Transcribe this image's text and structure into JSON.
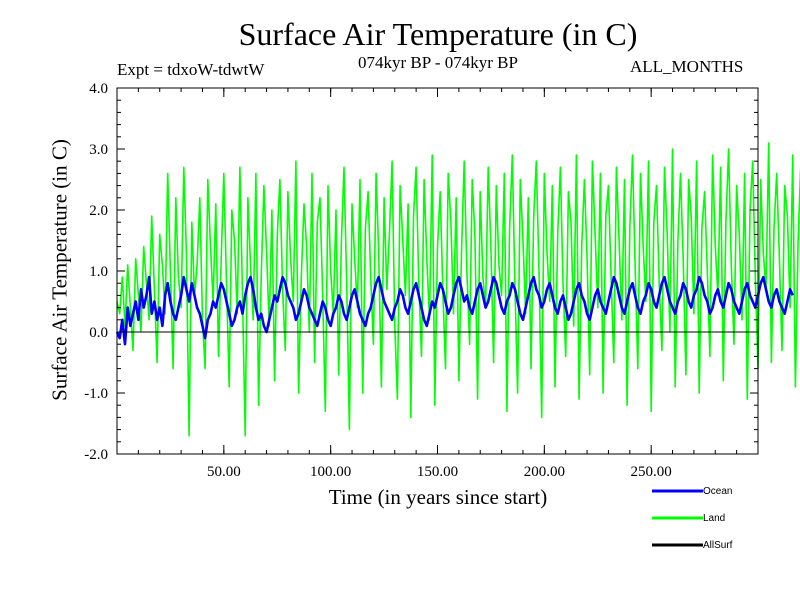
{
  "chart_data": {
    "type": "line",
    "title": "Surface Air Temperature (in C)",
    "subtitle": "074kyr BP - 074kyr BP",
    "experiment": "Expt = tdxoW-tdwtW",
    "months": "ALL_MONTHS",
    "xlabel": "Time (in years since start)",
    "ylabel": "Surface Air Temperature (in C)",
    "xlim": [
      0,
      300
    ],
    "ylim": [
      -2.0,
      4.0
    ],
    "x_ticks": [
      50,
      100,
      150,
      200,
      250
    ],
    "x_tick_labels": [
      "50.00",
      "100.00",
      "150.00",
      "200.00",
      "250.00"
    ],
    "y_ticks": [
      -2.0,
      -1.0,
      0.0,
      1.0,
      2.0,
      3.0,
      4.0
    ],
    "y_tick_labels": [
      "-2.0",
      "-1.0",
      "0.0",
      "1.0",
      "2.0",
      "3.0",
      "4.0"
    ],
    "zero_line": true,
    "series": [
      {
        "name": "Land",
        "color": "#00ff00",
        "x_start": 0,
        "x_step": 1.25,
        "values": [
          0.5,
          0.3,
          0.9,
          0.1,
          1.1,
          0.4,
          -0.3,
          1.2,
          0.6,
          0.0,
          1.4,
          0.8,
          0.2,
          1.9,
          0.7,
          -0.5,
          1.6,
          1.1,
          0.3,
          2.6,
          1.0,
          -0.6,
          2.2,
          0.9,
          0.4,
          2.7,
          1.3,
          -1.7,
          1.8,
          0.6,
          1.1,
          2.2,
          0.2,
          -0.6,
          2.5,
          1.4,
          0.5,
          2.1,
          -0.4,
          1.2,
          2.6,
          0.8,
          -0.9,
          2.0,
          1.5,
          0.3,
          2.7,
          0.6,
          -1.7,
          2.2,
          1.1,
          0.2,
          2.6,
          -1.2,
          0.9,
          2.4,
          1.3,
          0.1,
          2.0,
          -0.8,
          1.6,
          2.5,
          0.7,
          -0.3,
          2.3,
          1.2,
          0.5,
          2.8,
          -1.0,
          0.9,
          2.1,
          1.4,
          0.0,
          2.6,
          -0.5,
          1.8,
          2.2,
          0.6,
          -1.3,
          2.4,
          1.0,
          0.3,
          2.0,
          -0.7,
          1.5,
          2.7,
          0.8,
          -1.6,
          2.1,
          1.2,
          0.4,
          2.5,
          -1.0,
          1.7,
          2.3,
          0.9,
          -0.2,
          2.6,
          1.3,
          -0.9,
          2.2,
          0.7,
          1.6,
          2.8,
          0.1,
          -1.1,
          2.4,
          1.5,
          0.6,
          2.1,
          -1.4,
          1.9,
          2.7,
          0.8,
          -0.4,
          2.5,
          1.2,
          0.2,
          2.9,
          -1.2,
          1.4,
          2.3,
          0.7,
          -0.6,
          2.6,
          1.8,
          0.3,
          2.2,
          -0.8,
          1.3,
          2.8,
          1.0,
          -0.2,
          2.5,
          1.6,
          -1.1,
          2.3,
          0.9,
          0.4,
          2.7,
          1.4,
          -0.5,
          2.4,
          1.1,
          0.6,
          2.6,
          -1.3,
          1.7,
          2.9,
          0.7,
          -1.0,
          2.5,
          1.5,
          0.3,
          2.2,
          -0.6,
          1.9,
          2.8,
          1.0,
          -1.4,
          2.6,
          1.3,
          0.5,
          2.4,
          -0.9,
          1.6,
          2.7,
          0.8,
          -0.4,
          2.3,
          1.8,
          0.1,
          2.9,
          -1.1,
          1.4,
          2.5,
          1.2,
          -0.7,
          2.8,
          1.6,
          0.4,
          2.6,
          -1.0,
          1.9,
          2.4,
          0.9,
          -0.5,
          2.7,
          1.5,
          0.2,
          2.5,
          -1.2,
          1.7,
          2.9,
          1.1,
          -0.6,
          2.6,
          1.4,
          0.5,
          2.8,
          -1.3,
          1.8,
          2.4,
          0.8,
          -0.3,
          2.7,
          1.6,
          0.0,
          3.0,
          -0.9,
          1.5,
          2.6,
          1.2,
          -0.7,
          2.5,
          1.9,
          0.3,
          2.8,
          -1.0,
          1.7,
          2.3,
          1.0,
          -0.4,
          2.9,
          1.4,
          0.6,
          2.7,
          -0.8,
          1.8,
          3.0,
          1.1,
          -0.2,
          2.4,
          1.6,
          0.2,
          2.6,
          -1.1,
          2.0,
          2.8,
          0.9,
          -0.6,
          2.5,
          1.3,
          0.7,
          3.1,
          -0.5,
          1.7,
          2.6,
          1.2,
          -0.3,
          2.4,
          1.9,
          0.4,
          2.9,
          -0.9,
          1.5,
          2.7,
          1.0,
          -0.1,
          2.5,
          1.4,
          0.8,
          3.0,
          -0.6,
          1.8,
          2.4,
          0.9,
          1.6
        ]
      },
      {
        "name": "Ocean",
        "color": "#0000ff",
        "x_start": 0,
        "x_step": 1.25,
        "values": [
          0.0,
          -0.1,
          0.2,
          -0.2,
          0.4,
          0.1,
          0.3,
          0.5,
          0.2,
          0.7,
          0.4,
          0.6,
          0.9,
          0.3,
          0.5,
          0.2,
          0.4,
          0.1,
          0.6,
          0.8,
          0.5,
          0.3,
          0.2,
          0.4,
          0.6,
          0.9,
          0.7,
          0.5,
          0.8,
          0.6,
          0.4,
          0.3,
          0.1,
          -0.1,
          0.2,
          0.3,
          0.5,
          0.4,
          0.6,
          0.8,
          0.7,
          0.5,
          0.3,
          0.1,
          0.2,
          0.4,
          0.5,
          0.3,
          0.6,
          0.8,
          0.9,
          0.7,
          0.4,
          0.2,
          0.3,
          0.1,
          0.0,
          0.2,
          0.4,
          0.6,
          0.5,
          0.7,
          0.9,
          0.8,
          0.6,
          0.5,
          0.4,
          0.2,
          0.3,
          0.5,
          0.7,
          0.6,
          0.4,
          0.3,
          0.2,
          0.1,
          0.3,
          0.5,
          0.4,
          0.2,
          0.1,
          0.3,
          0.4,
          0.6,
          0.5,
          0.3,
          0.2,
          0.4,
          0.6,
          0.7,
          0.5,
          0.3,
          0.2,
          0.1,
          0.3,
          0.4,
          0.6,
          0.8,
          0.9,
          0.7,
          0.5,
          0.4,
          0.3,
          0.2,
          0.4,
          0.5,
          0.7,
          0.6,
          0.4,
          0.3,
          0.5,
          0.7,
          0.8,
          0.6,
          0.4,
          0.2,
          0.1,
          0.3,
          0.5,
          0.4,
          0.6,
          0.8,
          0.7,
          0.5,
          0.3,
          0.4,
          0.6,
          0.8,
          0.9,
          0.7,
          0.5,
          0.6,
          0.4,
          0.3,
          0.5,
          0.7,
          0.8,
          0.6,
          0.4,
          0.5,
          0.7,
          0.9,
          0.8,
          0.6,
          0.4,
          0.3,
          0.5,
          0.6,
          0.8,
          0.7,
          0.5,
          0.3,
          0.2,
          0.4,
          0.6,
          0.8,
          0.9,
          0.7,
          0.6,
          0.4,
          0.5,
          0.7,
          0.8,
          0.6,
          0.4,
          0.3,
          0.5,
          0.6,
          0.4,
          0.2,
          0.3,
          0.5,
          0.7,
          0.8,
          0.6,
          0.5,
          0.3,
          0.2,
          0.4,
          0.6,
          0.7,
          0.5,
          0.4,
          0.3,
          0.5,
          0.7,
          0.9,
          0.8,
          0.6,
          0.4,
          0.3,
          0.5,
          0.7,
          0.8,
          0.6,
          0.4,
          0.3,
          0.5,
          0.6,
          0.8,
          0.7,
          0.5,
          0.4,
          0.6,
          0.8,
          0.9,
          0.7,
          0.5,
          0.4,
          0.3,
          0.5,
          0.6,
          0.8,
          0.7,
          0.5,
          0.4,
          0.6,
          0.7,
          0.9,
          0.8,
          0.6,
          0.5,
          0.3,
          0.4,
          0.6,
          0.7,
          0.5,
          0.4,
          0.6,
          0.8,
          0.7,
          0.5,
          0.4,
          0.3,
          0.5,
          0.7,
          0.8,
          0.6,
          0.5,
          0.4,
          0.6,
          0.8,
          0.9,
          0.7,
          0.5,
          0.4,
          0.6,
          0.7,
          0.5,
          0.4,
          0.3,
          0.5,
          0.7,
          0.6
        ]
      },
      {
        "name": "AllSurf",
        "color": "#000000",
        "x_start": 0,
        "x_step": 1.25,
        "values": []
      }
    ],
    "legend": [
      "Ocean",
      "Land",
      "AllSurf"
    ]
  }
}
